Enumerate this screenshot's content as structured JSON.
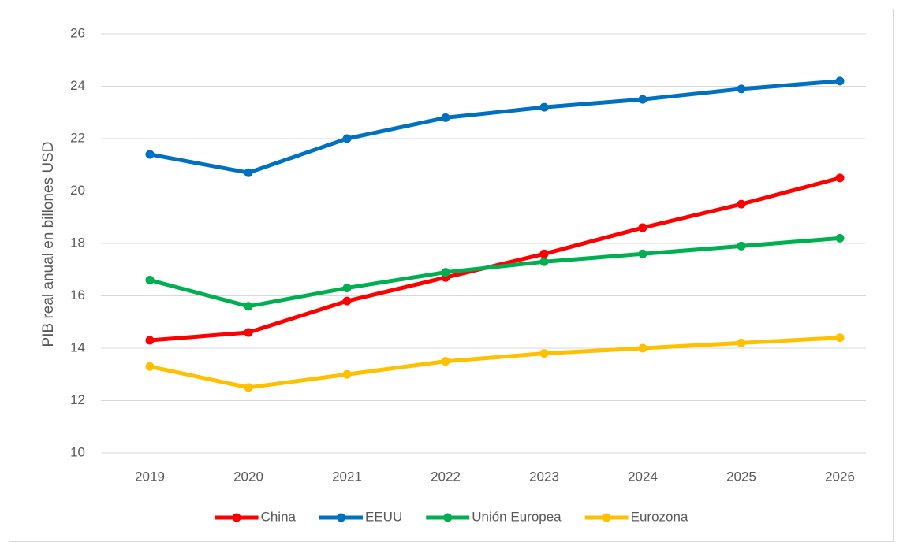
{
  "chart_data": {
    "type": "line",
    "y_label": "PIB real anual en billones USD",
    "categories": [
      "2019",
      "2020",
      "2021",
      "2022",
      "2023",
      "2024",
      "2025",
      "2026"
    ],
    "series": [
      {
        "name": "China",
        "color": "#ff0000",
        "values": [
          14.3,
          14.6,
          15.8,
          16.7,
          17.6,
          18.6,
          19.5,
          20.5
        ]
      },
      {
        "name": "EEUU",
        "color": "#0070c0",
        "values": [
          21.4,
          20.7,
          22.0,
          22.8,
          23.2,
          23.5,
          23.9,
          24.2
        ]
      },
      {
        "name": "Unión Europea",
        "color": "#00b050",
        "values": [
          16.6,
          15.6,
          16.3,
          16.9,
          17.3,
          17.6,
          17.9,
          18.2
        ]
      },
      {
        "name": "Eurozona",
        "color": "#ffc000",
        "values": [
          13.3,
          12.5,
          13.0,
          13.5,
          13.8,
          14.0,
          14.2,
          14.4
        ]
      }
    ],
    "ylim": [
      10,
      26
    ],
    "yticks": [
      10,
      12,
      14,
      16,
      18,
      20,
      22,
      24,
      26
    ],
    "grid": true,
    "legend": "bottom"
  }
}
